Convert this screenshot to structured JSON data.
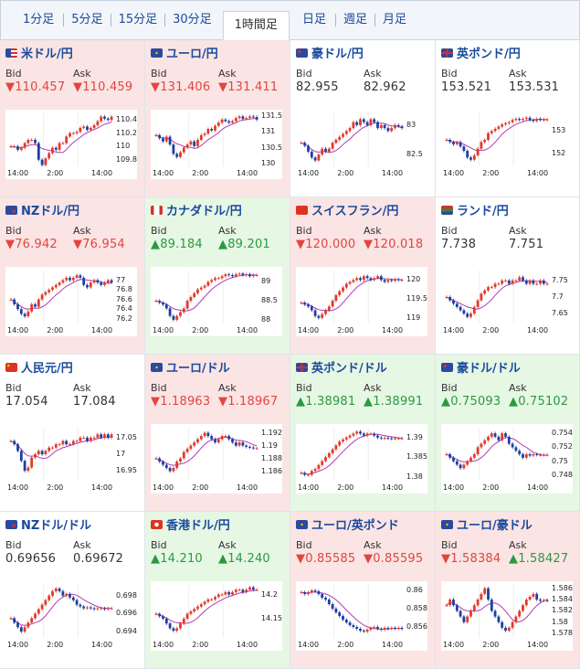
{
  "tabs": [
    {
      "label": "1分足",
      "active": false
    },
    {
      "label": "5分足",
      "active": false
    },
    {
      "label": "15分足",
      "active": false
    },
    {
      "label": "30分足",
      "active": false
    },
    {
      "label": "1時間足",
      "active": true
    },
    {
      "label": "日足",
      "active": false
    },
    {
      "label": "週足",
      "active": false
    },
    {
      "label": "月足",
      "active": false
    }
  ],
  "bid_label": "Bid",
  "ask_label": "Ask",
  "colors": {
    "down_bg": "#fbe4e4",
    "up_bg": "#e6f7e4",
    "down_text": "#e0463f",
    "up_text": "#2a9a3e",
    "ma_line": "#b03cb0",
    "ma_short": "#30b0d0",
    "candle_up": "#e03a2c",
    "candle_down": "#1e3fa0"
  },
  "pairs": [
    {
      "name": "米ドル/円",
      "trend": "down",
      "bid": "▼110.457",
      "ask": "▼110.459",
      "flag": "us",
      "chart_data": {
        "type": "candlestick",
        "y_ticks": [
          "110.4",
          "110.2",
          "110",
          "109.8"
        ],
        "x_ticks": [
          "14:00",
          "2:00",
          "14:00"
        ],
        "ylim": [
          109.7,
          110.5
        ],
        "closes": [
          110.0,
          110.0,
          109.95,
          109.98,
          110.05,
          110.1,
          110.1,
          110.05,
          109.8,
          109.72,
          109.82,
          109.9,
          109.98,
          109.95,
          110.05,
          110.05,
          110.15,
          110.2,
          110.2,
          110.22,
          110.28,
          110.3,
          110.25,
          110.28,
          110.32,
          110.38,
          110.45,
          110.42,
          110.4,
          110.45
        ]
      }
    },
    {
      "name": "ユーロ/円",
      "trend": "down",
      "bid": "▼131.406",
      "ask": "▼131.411",
      "flag": "eu",
      "chart_data": {
        "type": "candlestick",
        "y_ticks": [
          "131.5",
          "131",
          "130.5",
          "130"
        ],
        "x_ticks": [
          "14:00",
          "2:00",
          "14:00"
        ],
        "ylim": [
          129.9,
          131.6
        ],
        "closes": [
          130.9,
          130.8,
          130.7,
          130.85,
          130.6,
          130.3,
          130.2,
          130.35,
          130.5,
          130.6,
          130.7,
          130.55,
          130.75,
          130.9,
          130.95,
          131.1,
          131.05,
          131.2,
          131.3,
          131.4,
          131.35,
          131.3,
          131.35,
          131.45,
          131.5,
          131.42,
          131.45,
          131.5,
          131.48,
          131.4
        ]
      }
    },
    {
      "name": "豪ドル/円",
      "trend": "flat",
      "bid": "82.955",
      "ask": "82.962",
      "flag": "au",
      "chart_data": {
        "type": "candlestick",
        "y_ticks": [
          "83",
          "82.5"
        ],
        "x_ticks": [
          "14:00",
          "2:00",
          "14:00"
        ],
        "ylim": [
          82.3,
          83.2
        ],
        "closes": [
          82.7,
          82.65,
          82.55,
          82.45,
          82.4,
          82.5,
          82.6,
          82.55,
          82.6,
          82.7,
          82.75,
          82.8,
          82.85,
          82.9,
          82.95,
          83.05,
          83.0,
          83.1,
          83.05,
          83.0,
          83.1,
          83.05,
          82.95,
          83.0,
          82.95,
          82.9,
          82.95,
          83.0,
          82.98,
          82.95
        ]
      }
    },
    {
      "name": "英ポンド/円",
      "trend": "flat",
      "bid": "153.521",
      "ask": "153.531",
      "flag": "gb",
      "chart_data": {
        "type": "candlestick",
        "y_ticks": [
          "153",
          "152"
        ],
        "x_ticks": [
          "14:00",
          "2:00",
          "14:00"
        ],
        "ylim": [
          151.4,
          153.8
        ],
        "closes": [
          152.6,
          152.5,
          152.4,
          152.5,
          152.3,
          152.1,
          151.8,
          151.7,
          151.9,
          152.2,
          152.5,
          152.6,
          152.9,
          153.0,
          153.1,
          153.2,
          153.3,
          153.35,
          153.4,
          153.5,
          153.55,
          153.5,
          153.55,
          153.6,
          153.5,
          153.45,
          153.55,
          153.5,
          153.52,
          153.52
        ]
      }
    },
    {
      "name": "NZドル/円",
      "trend": "down",
      "bid": "▼76.942",
      "ask": "▼76.954",
      "flag": "nz",
      "chart_data": {
        "type": "candlestick",
        "y_ticks": [
          "77",
          "76.8",
          "76.6",
          "76.4",
          "76.2"
        ],
        "x_ticks": [
          "14:00",
          "2:00",
          "14:00"
        ],
        "ylim": [
          76.1,
          77.2
        ],
        "closes": [
          76.6,
          76.5,
          76.4,
          76.3,
          76.25,
          76.35,
          76.5,
          76.45,
          76.6,
          76.7,
          76.75,
          76.8,
          76.85,
          76.9,
          76.95,
          77.0,
          77.05,
          77.0,
          77.05,
          77.1,
          77.05,
          76.9,
          76.85,
          76.95,
          77.0,
          76.95,
          76.9,
          76.95,
          77.0,
          76.95
        ]
      }
    },
    {
      "name": "カナダドル/円",
      "trend": "up",
      "bid": "▲89.184",
      "ask": "▲89.201",
      "flag": "ca",
      "chart_data": {
        "type": "candlestick",
        "y_ticks": [
          "89",
          "88.5",
          "88"
        ],
        "x_ticks": [
          "14:00",
          "2:00",
          "14:00"
        ],
        "ylim": [
          87.9,
          89.3
        ],
        "closes": [
          88.5,
          88.45,
          88.4,
          88.3,
          88.1,
          88.0,
          88.1,
          88.2,
          88.3,
          88.5,
          88.6,
          88.7,
          88.8,
          88.85,
          88.9,
          89.0,
          89.05,
          89.1,
          89.1,
          89.15,
          89.2,
          89.18,
          89.15,
          89.2,
          89.22,
          89.18,
          89.2,
          89.15,
          89.18,
          89.18
        ]
      }
    },
    {
      "name": "スイスフラン/円",
      "trend": "down",
      "bid": "▼120.000",
      "ask": "▼120.018",
      "flag": "ch",
      "chart_data": {
        "type": "candlestick",
        "y_ticks": [
          "120",
          "119.5",
          "119"
        ],
        "x_ticks": [
          "14:00",
          "2:00",
          "14:00"
        ],
        "ylim": [
          118.85,
          120.25
        ],
        "closes": [
          119.4,
          119.35,
          119.3,
          119.2,
          119.05,
          119.0,
          119.1,
          119.2,
          119.3,
          119.45,
          119.6,
          119.7,
          119.8,
          119.9,
          119.95,
          120.0,
          120.05,
          120.0,
          120.1,
          120.05,
          120.0,
          120.05,
          120.1,
          120.0,
          119.95,
          120.0,
          119.98,
          120.02,
          120.0,
          120.0
        ]
      }
    },
    {
      "name": "ランド/円",
      "trend": "flat",
      "bid": "7.738",
      "ask": "7.751",
      "flag": "za",
      "chart_data": {
        "type": "candlestick",
        "y_ticks": [
          "7.75",
          "7.7",
          "7.65"
        ],
        "x_ticks": [
          "14:00",
          "2:00",
          "14:00"
        ],
        "ylim": [
          7.62,
          7.78
        ],
        "closes": [
          7.7,
          7.69,
          7.68,
          7.67,
          7.66,
          7.65,
          7.64,
          7.65,
          7.67,
          7.69,
          7.71,
          7.72,
          7.73,
          7.73,
          7.74,
          7.74,
          7.75,
          7.75,
          7.74,
          7.75,
          7.75,
          7.76,
          7.75,
          7.74,
          7.75,
          7.74,
          7.74,
          7.75,
          7.74,
          7.74
        ]
      }
    },
    {
      "name": "人民元/円",
      "trend": "flat",
      "bid": "17.054",
      "ask": "17.084",
      "flag": "cn",
      "chart_data": {
        "type": "candlestick",
        "y_ticks": [
          "17.05",
          "17",
          "16.95"
        ],
        "x_ticks": [
          "14:00",
          "2:00",
          "14:00"
        ],
        "ylim": [
          16.92,
          17.08
        ],
        "closes": [
          17.04,
          17.03,
          17.01,
          16.98,
          16.95,
          16.96,
          16.99,
          17.0,
          17.01,
          17.0,
          17.01,
          17.02,
          17.02,
          17.03,
          17.03,
          17.04,
          17.03,
          17.03,
          17.04,
          17.04,
          17.05,
          17.05,
          17.04,
          17.05,
          17.05,
          17.06,
          17.05,
          17.06,
          17.05,
          17.06
        ]
      }
    },
    {
      "name": "ユーロ/ドル",
      "trend": "down",
      "bid": "▼1.18963",
      "ask": "▼1.18967",
      "flag": "eu",
      "chart_data": {
        "type": "candlestick",
        "y_ticks": [
          "1.192",
          "1.19",
          "1.188",
          "1.186"
        ],
        "x_ticks": [
          "14:00",
          "2:00",
          "14:00"
        ],
        "ylim": [
          1.1845,
          1.1928
        ],
        "closes": [
          1.188,
          1.1875,
          1.187,
          1.1865,
          1.186,
          1.1865,
          1.1875,
          1.188,
          1.189,
          1.1895,
          1.19,
          1.1905,
          1.191,
          1.1915,
          1.192,
          1.1915,
          1.191,
          1.1905,
          1.191,
          1.1915,
          1.1915,
          1.191,
          1.1905,
          1.19,
          1.1905,
          1.19,
          1.1898,
          1.1897,
          1.1896,
          1.1896
        ]
      }
    },
    {
      "name": "英ポンド/ドル",
      "trend": "up",
      "bid": "▲1.38981",
      "ask": "▲1.38991",
      "flag": "gb",
      "chart_data": {
        "type": "candlestick",
        "y_ticks": [
          "1.39",
          "1.385",
          "1.38"
        ],
        "x_ticks": [
          "14:00",
          "2:00",
          "14:00"
        ],
        "ylim": [
          1.379,
          1.3925
        ],
        "closes": [
          1.381,
          1.3805,
          1.3805,
          1.3815,
          1.382,
          1.383,
          1.384,
          1.385,
          1.386,
          1.387,
          1.388,
          1.389,
          1.3895,
          1.39,
          1.3905,
          1.391,
          1.3915,
          1.391,
          1.3905,
          1.391,
          1.391,
          1.3905,
          1.39,
          1.3898,
          1.3899,
          1.3898,
          1.3897,
          1.3898,
          1.3898,
          1.3898
        ]
      }
    },
    {
      "name": "豪ドル/ドル",
      "trend": "up",
      "bid": "▲0.75093",
      "ask": "▲0.75102",
      "flag": "au",
      "chart_data": {
        "type": "candlestick",
        "y_ticks": [
          "0.754",
          "0.752",
          "0.75",
          "0.748"
        ],
        "x_ticks": [
          "14:00",
          "2:00",
          "14:00"
        ],
        "ylim": [
          0.7472,
          0.7548
        ],
        "closes": [
          0.751,
          0.7505,
          0.75,
          0.7495,
          0.749,
          0.7495,
          0.75,
          0.7505,
          0.751,
          0.752,
          0.7525,
          0.753,
          0.7535,
          0.754,
          0.7535,
          0.753,
          0.754,
          0.7535,
          0.7525,
          0.752,
          0.7515,
          0.751,
          0.7505,
          0.751,
          0.7508,
          0.751,
          0.7509,
          0.7509,
          0.7509,
          0.7509
        ]
      }
    },
    {
      "name": "NZドル/ドル",
      "trend": "flat",
      "bid": "0.69656",
      "ask": "0.69672",
      "flag": "nz",
      "chart_data": {
        "type": "candlestick",
        "y_ticks": [
          "0.698",
          "0.696",
          "0.694"
        ],
        "x_ticks": [
          "14:00",
          "2:00",
          "14:00"
        ],
        "ylim": [
          0.6933,
          0.6992
        ],
        "closes": [
          0.6955,
          0.695,
          0.6945,
          0.694,
          0.6945,
          0.695,
          0.6955,
          0.696,
          0.6965,
          0.697,
          0.6975,
          0.698,
          0.6985,
          0.6988,
          0.6985,
          0.698,
          0.6982,
          0.6978,
          0.6975,
          0.697,
          0.6968,
          0.6966,
          0.6967,
          0.6966,
          0.6965,
          0.6966,
          0.6966,
          0.6965,
          0.6966,
          0.6966
        ]
      }
    },
    {
      "name": "香港ドル/円",
      "trend": "up",
      "bid": "▲14.210",
      "ask": "▲14.240",
      "flag": "hk",
      "chart_data": {
        "type": "candlestick",
        "y_ticks": [
          "14.2",
          "14.15"
        ],
        "x_ticks": [
          "14:00",
          "2:00",
          "14:00"
        ],
        "ylim": [
          14.11,
          14.22
        ],
        "closes": [
          14.16,
          14.155,
          14.15,
          14.14,
          14.13,
          14.125,
          14.13,
          14.14,
          14.15,
          14.16,
          14.165,
          14.17,
          14.175,
          14.18,
          14.185,
          14.19,
          14.19,
          14.195,
          14.2,
          14.2,
          14.205,
          14.2,
          14.205,
          14.21,
          14.21,
          14.205,
          14.21,
          14.215,
          14.21,
          14.21
        ]
      }
    },
    {
      "name": "ユーロ/英ポンド",
      "trend": "down",
      "bid": "▼0.85585",
      "ask": "▼0.85595",
      "flag": "eu",
      "chart_data": {
        "type": "candlestick",
        "y_ticks": [
          "0.86",
          "0.858",
          "0.856"
        ],
        "x_ticks": [
          "14:00",
          "2:00",
          "14:00"
        ],
        "ylim": [
          0.8548,
          0.8606
        ],
        "closes": [
          0.8598,
          0.8596,
          0.8598,
          0.86,
          0.8599,
          0.8596,
          0.8592,
          0.859,
          0.8585,
          0.858,
          0.8576,
          0.8572,
          0.8568,
          0.8565,
          0.8562,
          0.856,
          0.8558,
          0.8556,
          0.8555,
          0.8557,
          0.8559,
          0.856,
          0.8558,
          0.8557,
          0.8559,
          0.8558,
          0.8559,
          0.8558,
          0.8559,
          0.8558
        ]
      }
    },
    {
      "name": "ユーロ/豪ドル",
      "trend": "down",
      "bid": "▼1.58384",
      "ask": "▲1.58427",
      "flag": "eu",
      "chart_data": {
        "type": "candlestick",
        "y_ticks": [
          "1.586",
          "1.584",
          "1.582",
          "1.58",
          "1.578"
        ],
        "x_ticks": [
          "14:00",
          "2:00",
          "14:00"
        ],
        "ylim": [
          1.5772,
          1.5866
        ],
        "closes": [
          1.583,
          1.584,
          1.583,
          1.582,
          1.581,
          1.58,
          1.581,
          1.582,
          1.583,
          1.584,
          1.585,
          1.586,
          1.584,
          1.582,
          1.581,
          1.58,
          1.579,
          1.5785,
          1.579,
          1.58,
          1.581,
          1.582,
          1.583,
          1.584,
          1.5845,
          1.585,
          1.584,
          1.5838,
          1.5839,
          1.5838
        ]
      }
    }
  ]
}
